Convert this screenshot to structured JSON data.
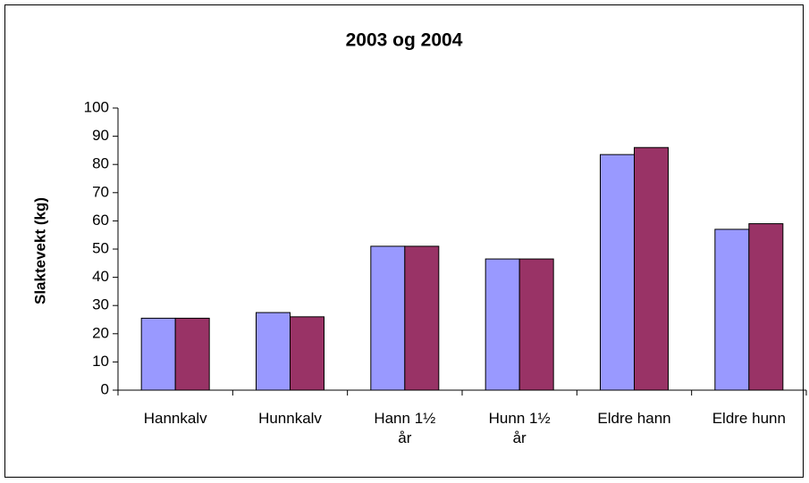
{
  "chart_data": {
    "type": "bar",
    "title": "2003 og 2004",
    "y_label": "Slaktevekt (kg)",
    "categories": [
      "Hannkalv",
      "Hunnkalv",
      "Hann 1½ år",
      "Hunn 1½ år",
      "Eldre hann",
      "Eldre hunn"
    ],
    "series": [
      {
        "color": "#9999ff",
        "values": [
          25.5,
          27.5,
          51,
          46.5,
          83.5,
          57
        ]
      },
      {
        "color": "#993366",
        "values": [
          25.5,
          26,
          51,
          46.5,
          86,
          59
        ]
      }
    ],
    "ylim": [
      0,
      100
    ],
    "yticks": [
      0,
      10,
      20,
      30,
      40,
      50,
      60,
      70,
      80,
      90,
      100
    ],
    "grid": false
  }
}
